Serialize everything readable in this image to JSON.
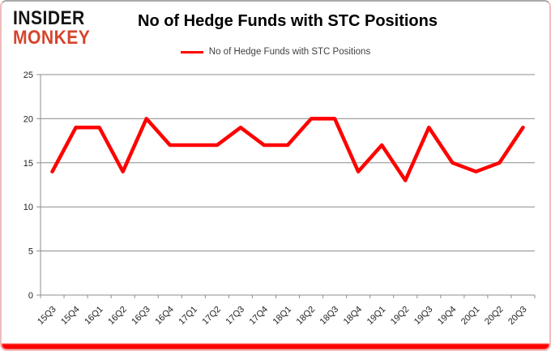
{
  "logo": {
    "line1": "INSIDER",
    "line2": "MONKEY"
  },
  "header": {
    "title": "No of Hedge Funds with STC Positions"
  },
  "legend": {
    "label": "No of Hedge Funds with STC Positions"
  },
  "colors": {
    "series": "#ff0000",
    "grid": "#8c8c8c",
    "axis": "#8c8c8c",
    "tick_text": "#1f1f1f",
    "logo_black": "#141414",
    "logo_red": "#d5452d",
    "bottom_bar": "#ff0000"
  },
  "chart_data": {
    "type": "line",
    "title": "No of Hedge Funds with STC Positions",
    "categories": [
      "15Q3",
      "15Q4",
      "16Q1",
      "16Q2",
      "16Q3",
      "16Q4",
      "17Q1",
      "17Q2",
      "17Q3",
      "17Q4",
      "18Q1",
      "18Q2",
      "18Q3",
      "18Q4",
      "19Q1",
      "19Q2",
      "19Q3",
      "19Q4",
      "20Q1",
      "20Q2",
      "20Q3"
    ],
    "series": [
      {
        "name": "No of Hedge Funds with STC Positions",
        "color": "#ff0000",
        "values": [
          14,
          19,
          19,
          14,
          20,
          17,
          17,
          17,
          19,
          17,
          17,
          20,
          20,
          14,
          17,
          13,
          19,
          15,
          14,
          15,
          19
        ]
      }
    ],
    "xlabel": "",
    "ylabel": "",
    "ylim": [
      0,
      25
    ],
    "yticks": [
      0,
      5,
      10,
      15,
      20,
      25
    ],
    "grid": true,
    "legend_position": "top-center"
  }
}
